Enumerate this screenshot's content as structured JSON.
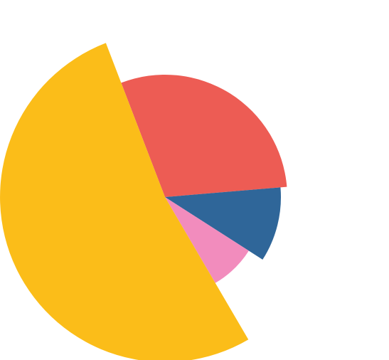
{
  "chart_data": {
    "type": "pie",
    "title": "",
    "slices": [
      {
        "value": 29.5,
        "color": "#ed5c54"
      },
      {
        "value": 10.4,
        "color": "#2f6699"
      },
      {
        "value": 7.5,
        "color": "#f28cbd"
      },
      {
        "value": 52.6,
        "color": "#fbbd19"
      }
    ],
    "legend": "none",
    "grid": false
  }
}
